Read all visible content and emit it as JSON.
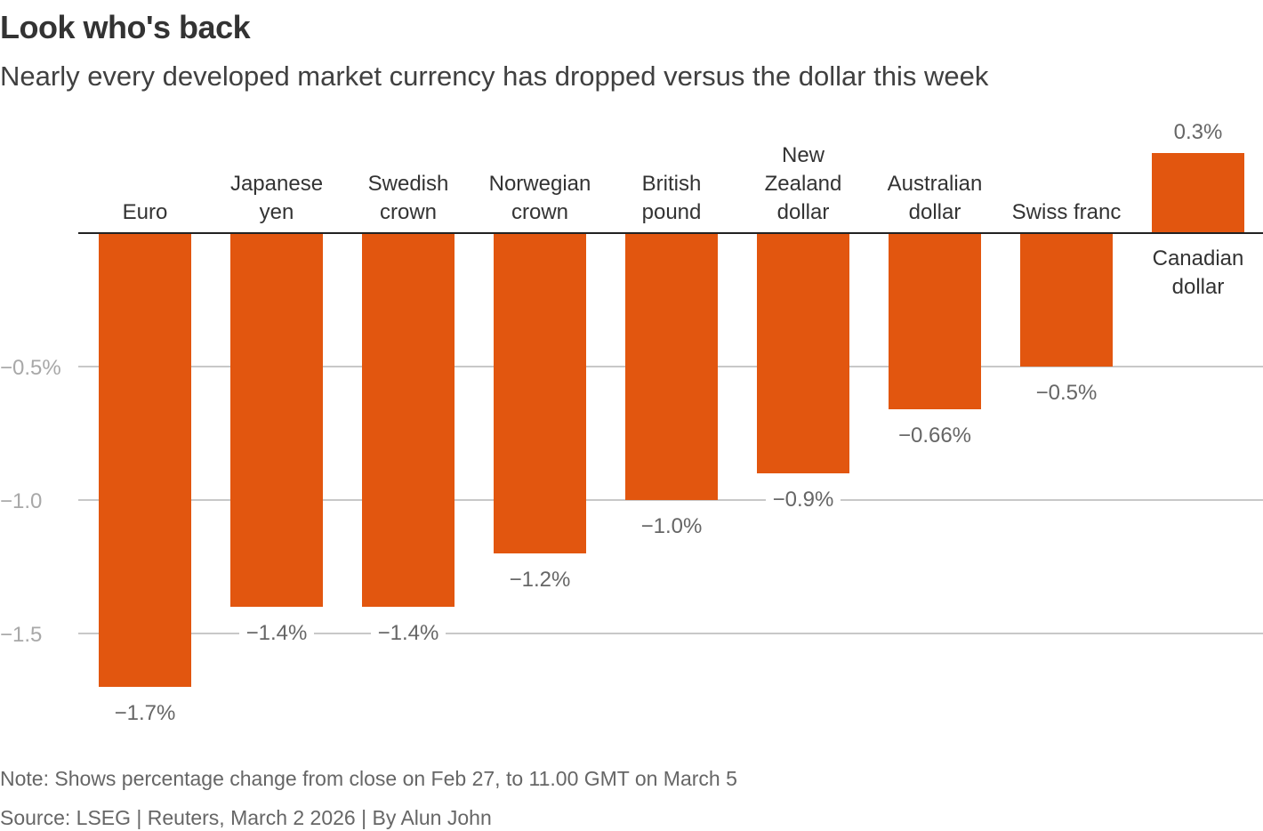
{
  "title": "Look who's back",
  "subtitle": "Nearly every developed market currency has dropped versus the dollar this week",
  "note": "Note: Shows percentage change from close on Feb 27, to 11.00 GMT on March 5",
  "source": "Source: LSEG | Reuters, March 2 2026 | By Alun John",
  "chart_data": {
    "type": "bar",
    "categories": [
      "Euro",
      "Japanese yen",
      "Swedish crown",
      "Norwegian crown",
      "British pound",
      "New Zealand dollar",
      "Australian dollar",
      "Swiss franc",
      "Canadian dollar"
    ],
    "category_lines": [
      [
        "Euro"
      ],
      [
        "Japanese",
        "yen"
      ],
      [
        "Swedish",
        "crown"
      ],
      [
        "Norwegian",
        "crown"
      ],
      [
        "British",
        "pound"
      ],
      [
        "New",
        "Zealand",
        "dollar"
      ],
      [
        "Australian",
        "dollar"
      ],
      [
        "Swiss franc"
      ],
      [
        "Canadian",
        "dollar"
      ]
    ],
    "values": [
      -1.7,
      -1.4,
      -1.4,
      -1.2,
      -1.0,
      -0.9,
      -0.66,
      -0.5,
      0.3
    ],
    "value_labels": [
      "−1.7%",
      "−1.4%",
      "−1.4%",
      "−1.2%",
      "−1.0%",
      "−0.9%",
      "−0.66%",
      "−0.5%",
      "0.3%"
    ],
    "yticks": [
      -0.5,
      -1.0,
      -1.5
    ],
    "ytick_labels": [
      "−0.5%",
      "−1.0",
      "−1.5"
    ],
    "ylim": [
      -1.75,
      0.3
    ],
    "grid": true,
    "bar_color": "#E2560F",
    "xlabel": "",
    "ylabel": ""
  }
}
